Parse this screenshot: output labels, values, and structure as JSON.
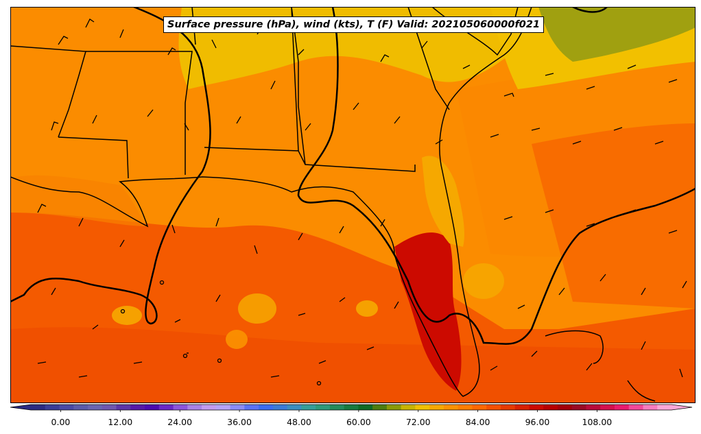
{
  "title": "Surface pressure (hPa), wind (kts), T (F) Valid: 202105060000f021",
  "colorbar": {
    "tick_labels": [
      "0.00",
      "12.00",
      "24.00",
      "36.00",
      "48.00",
      "60.00",
      "72.00",
      "84.00",
      "96.00",
      "108.00"
    ],
    "tick_values": [
      0,
      12,
      24,
      36,
      48,
      60,
      72,
      84,
      96,
      108
    ],
    "min": -6,
    "max": 123,
    "step": 3,
    "extend": "both",
    "colors": [
      "#2b2b82",
      "#393c97",
      "#4a4aa5",
      "#5b5bab",
      "#6a65b2",
      "#6f57b0",
      "#5c35a8",
      "#5519a8",
      "#4b0ab0",
      "#6a28c8",
      "#8c55dc",
      "#a982e6",
      "#c29bef",
      "#b6a3f7",
      "#8a8cf6",
      "#5a72f5",
      "#3b6cf0",
      "#3a7bd6",
      "#3a8ec0",
      "#359e99",
      "#2e9a7a",
      "#238a5a",
      "#177a3e",
      "#0d6a24",
      "#4c7d0f",
      "#8a9a06",
      "#c8b400",
      "#f0c000",
      "#f6a800",
      "#fb9200",
      "#ff7e00",
      "#ff6800",
      "#f45000",
      "#e63a00",
      "#d82000",
      "#cc0a00",
      "#b80000",
      "#a3000a",
      "#9a0a24",
      "#b80a3a",
      "#d4104e",
      "#e81a6e",
      "#f2489a",
      "#f77cc0",
      "#fca7d8"
    ]
  },
  "map": {
    "overlay": "isobars, wind barbs, temperature shading",
    "region": "US Southeast and Gulf of Mexico"
  }
}
